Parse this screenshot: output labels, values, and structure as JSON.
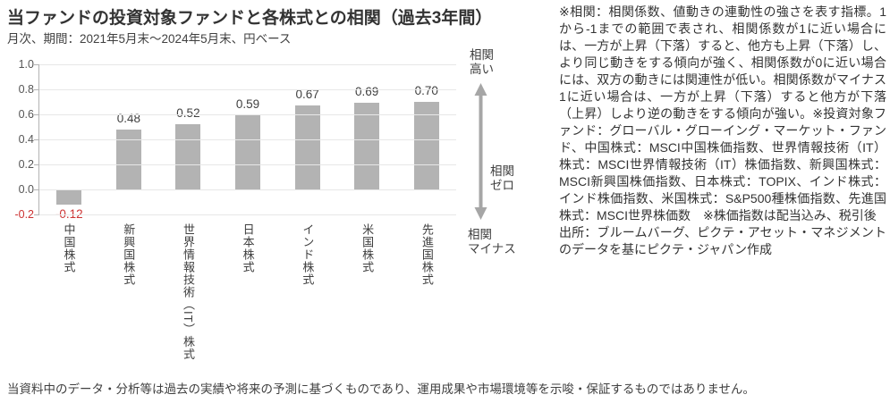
{
  "title": "当ファンドの投資対象ファンドと各株式との相関（過去3年間）",
  "subtitle": "月次、期間：2021年5月末～2024年5月末、円ベース",
  "chart_data": {
    "type": "bar",
    "categories": [
      "中国株式",
      "新興国株式",
      "世界情報技術（IT）株式",
      "日本株式",
      "インド株式",
      "米国株式",
      "先進国株式"
    ],
    "values": [
      -0.12,
      0.48,
      0.52,
      0.59,
      0.67,
      0.69,
      0.7
    ],
    "value_labels": [
      "-0.12",
      "0.48",
      "0.52",
      "0.59",
      "0.67",
      "0.69",
      "0.70"
    ],
    "title": "当ファンドの投資対象ファンドと各株式との相関（過去3年間）",
    "xlabel": "",
    "ylabel": "",
    "ylim": [
      -0.2,
      1.0
    ],
    "ytick_step": 0.2,
    "yticks": [
      "1.0",
      "0.8",
      "0.6",
      "0.4",
      "0.2",
      "0.0",
      "-0.2"
    ],
    "grid": true,
    "legend": "none"
  },
  "colors": {
    "bar": "#b3b3b3",
    "negative": "#cc3333",
    "grid": "#e7e7e7",
    "axis": "#b3b3b3",
    "arrow": "#a6a6a6",
    "text": "#404040"
  },
  "annotations": {
    "high": "相関\n高い",
    "zero": "相関\nゼロ",
    "minus": "相関\nマイナス"
  },
  "notes": {
    "definition": "※相関：相関係数、値動きの連動性の強さを表す指標。1から-1までの範囲で表され、相関係数が1に近い場合には、一方が上昇（下落）すると、他方も上昇（下落）し、より同じ動きをする傾向が強く、相関係数が0に近い場合には、双方の動きには関連性が低い。相関係数がマイナス1に近い場合は、一方が上昇（下落）すると他方が下落（上昇）しより逆の動きをする傾向が強い。※投資対象ファンド：グローバル・グローイング・マーケット・ファンド、中国株式：MSCI中国株価指数、世界情報技術（IT）株式：MSCI世界情報技術（IT）株価指数、新興国株式：MSCI新興国株価指数、日本株式：TOPIX、インド株式：インド株価指数、米国株式：S&P500種株価指数、先進国株式：MSCI世界株価数　※株価指数は配当込み、税引後",
    "source": "出所：ブルームバーグ、ピクテ・アセット・マネジメントのデータを基にピクテ・ジャパン作成"
  },
  "footer": {
    "disclaimer": "当資料中のデータ・分析等は過去の実績や将来の予測に基づくものであり、運用成果や市場環境等を示唆・保証するものではありません。"
  }
}
